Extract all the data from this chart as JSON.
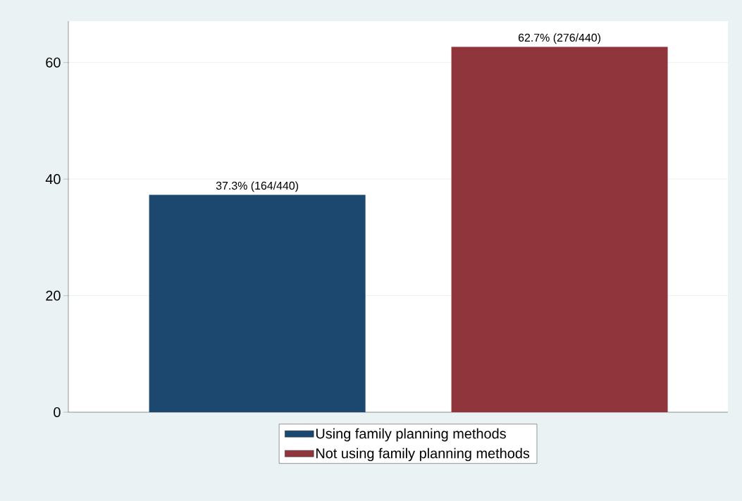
{
  "chart_data": {
    "type": "bar",
    "categories": [
      null,
      null
    ],
    "series": [
      {
        "name": "Using family planning methods",
        "color": "#1c4870",
        "values": [
          37.3,
          null
        ],
        "value_labels": [
          "37.3% (164/440)",
          null
        ]
      },
      {
        "name": "Not using family planning methods",
        "color": "#90353b",
        "values": [
          null,
          62.7
        ],
        "value_labels": [
          null,
          "62.7% (276/440)"
        ]
      }
    ],
    "ylim": [
      0,
      67.1
    ],
    "yticks": [
      0,
      20,
      40,
      60
    ],
    "grid": "y",
    "legend": "bottom"
  }
}
